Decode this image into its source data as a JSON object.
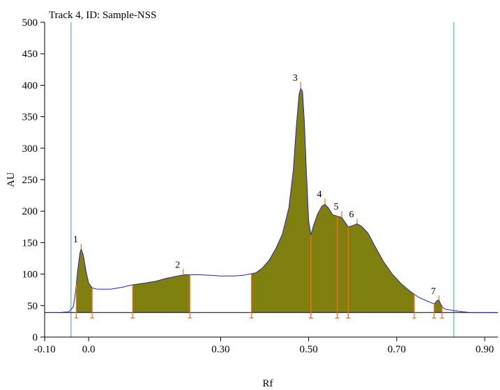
{
  "chart_data": {
    "type": "area",
    "title": "Track 4, ID: Sample-NSS",
    "xlabel": "Rf",
    "ylabel": "AU",
    "xlim": [
      -0.1,
      0.93
    ],
    "ylim": [
      0,
      500
    ],
    "xticks": [
      -0.1,
      0.0,
      0.3,
      0.5,
      0.7,
      0.9
    ],
    "xtick_labels": [
      "-0.10",
      "0.0",
      "0.30",
      "0.50",
      "0.70",
      "0.90"
    ],
    "yticks": [
      0,
      50,
      100,
      150,
      200,
      250,
      300,
      350,
      400,
      450,
      500
    ],
    "ytick_labels": [
      "0",
      "50",
      "100",
      "150",
      "200",
      "250",
      "300",
      "350",
      "400",
      "450",
      "500"
    ],
    "baseline_au": 39,
    "front_lines_rf": [
      -0.04,
      0.83
    ],
    "colors": {
      "trace": "#1f1fd0",
      "peak_fill": "#808010",
      "baseline": "#000000",
      "markers": "#ff6a1a",
      "front_lines": "#3a9ab3"
    },
    "trace": [
      [
        -0.07,
        39
      ],
      [
        -0.045,
        40
      ],
      [
        -0.035,
        48
      ],
      [
        -0.03,
        70
      ],
      [
        -0.025,
        105
      ],
      [
        -0.02,
        133
      ],
      [
        -0.017,
        140
      ],
      [
        -0.012,
        130
      ],
      [
        -0.006,
        105
      ],
      [
        0.0,
        86
      ],
      [
        0.008,
        78
      ],
      [
        0.02,
        76
      ],
      [
        0.05,
        76
      ],
      [
        0.075,
        79
      ],
      [
        0.1,
        83
      ],
      [
        0.13,
        86
      ],
      [
        0.155,
        89
      ],
      [
        0.175,
        93
      ],
      [
        0.195,
        96
      ],
      [
        0.21,
        98
      ],
      [
        0.22,
        99
      ],
      [
        0.25,
        99
      ],
      [
        0.28,
        98
      ],
      [
        0.3,
        97
      ],
      [
        0.33,
        97
      ],
      [
        0.35,
        98
      ],
      [
        0.365,
        100
      ],
      [
        0.38,
        102
      ],
      [
        0.395,
        110
      ],
      [
        0.41,
        122
      ],
      [
        0.425,
        140
      ],
      [
        0.44,
        163
      ],
      [
        0.455,
        205
      ],
      [
        0.465,
        265
      ],
      [
        0.472,
        335
      ],
      [
        0.478,
        385
      ],
      [
        0.482,
        395
      ],
      [
        0.486,
        390
      ],
      [
        0.49,
        345
      ],
      [
        0.495,
        260
      ],
      [
        0.5,
        185
      ],
      [
        0.505,
        162
      ],
      [
        0.51,
        175
      ],
      [
        0.52,
        195
      ],
      [
        0.53,
        208
      ],
      [
        0.537,
        211
      ],
      [
        0.545,
        205
      ],
      [
        0.555,
        194
      ],
      [
        0.565,
        192
      ],
      [
        0.575,
        190
      ],
      [
        0.59,
        175
      ],
      [
        0.6,
        177
      ],
      [
        0.61,
        180
      ],
      [
        0.62,
        176
      ],
      [
        0.635,
        165
      ],
      [
        0.65,
        145
      ],
      [
        0.67,
        120
      ],
      [
        0.69,
        100
      ],
      [
        0.71,
        85
      ],
      [
        0.73,
        73
      ],
      [
        0.75,
        63
      ],
      [
        0.77,
        57
      ],
      [
        0.78,
        54
      ],
      [
        0.786,
        53
      ],
      [
        0.792,
        58
      ],
      [
        0.796,
        59
      ],
      [
        0.8,
        52
      ],
      [
        0.806,
        46
      ],
      [
        0.812,
        44
      ],
      [
        0.83,
        42
      ],
      [
        0.85,
        40
      ],
      [
        0.87,
        39
      ],
      [
        0.93,
        39
      ]
    ],
    "peaks": [
      {
        "label": "1",
        "start": -0.028,
        "max": -0.017,
        "end": 0.008,
        "max_au": 148
      },
      {
        "label": "2",
        "start": 0.1,
        "max": 0.215,
        "end": 0.23,
        "max_au": 108
      },
      {
        "label": "3",
        "start": 0.37,
        "max": 0.482,
        "end": 0.505,
        "max_au": 405
      },
      {
        "label": "4",
        "start": 0.505,
        "max": 0.537,
        "end": 0.565,
        "max_au": 220
      },
      {
        "label": "5",
        "start": 0.565,
        "max": 0.575,
        "end": 0.59,
        "max_au": 200
      },
      {
        "label": "6",
        "start": 0.59,
        "max": 0.61,
        "end": 0.74,
        "max_au": 188
      },
      {
        "label": "7",
        "start": 0.785,
        "max": 0.796,
        "end": 0.803,
        "max_au": 66
      }
    ]
  }
}
